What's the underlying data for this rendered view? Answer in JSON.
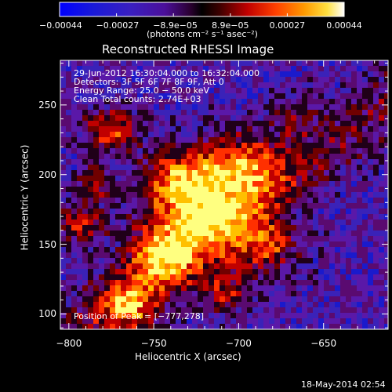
{
  "colorbar": {
    "ticks": [
      "−0.00044",
      "−0.00027",
      "−8.9e−05",
      "8.9e−05",
      "0.00027",
      "0.00044"
    ],
    "units": "(photons cm⁻² s⁻¹ asec⁻²)",
    "value_range": [
      -0.00044,
      0.00044
    ]
  },
  "title": "Reconstructed RHESSI Image",
  "info": {
    "line1": "29-Jun-2012 16:30:04.000 to 16:32:04.000",
    "line2": "Detectors: 3F 5F 6F 7F 8F 9F, Att 0",
    "line3": "Energy Range: 25.0 − 50.0 keV",
    "line4": "Clean     Total counts: 2.74E+03"
  },
  "peak": "Position of Peak = [−777,278]",
  "x_axis": {
    "label": "Heliocentric X (arcsec)",
    "ticks": [
      {
        "value": -800,
        "label": "−800"
      },
      {
        "value": -750,
        "label": "−750"
      },
      {
        "value": -700,
        "label": "−700"
      },
      {
        "value": -650,
        "label": "−650"
      }
    ],
    "range": [
      -805,
      -612
    ]
  },
  "y_axis": {
    "label": "Heliocentric Y (arcsec)",
    "ticks": [
      {
        "value": 100,
        "label": "100"
      },
      {
        "value": 150,
        "label": "150"
      },
      {
        "value": 200,
        "label": "200"
      },
      {
        "value": 250,
        "label": "250"
      }
    ],
    "range": [
      89,
      282
    ]
  },
  "timestamp": "18-May-2014 02:54",
  "colors": {
    "axes": "#ffffff",
    "background": "#000000"
  }
}
